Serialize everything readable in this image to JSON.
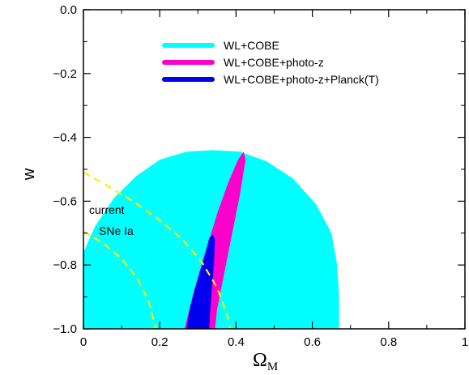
{
  "chart_data": {
    "type": "contour",
    "xlabel": "Ω",
    "xlabel_sub": "M",
    "ylabel": "w",
    "xlim": [
      0,
      1
    ],
    "ylim": [
      -1.0,
      0.0
    ],
    "xticks": [
      0,
      0.2,
      0.4,
      0.6,
      0.8,
      1
    ],
    "xtick_labels": [
      "0",
      "0.2",
      "0.4",
      "0.6",
      "0.8",
      "1"
    ],
    "yticks": [
      0.0,
      -0.2,
      -0.4,
      -0.6,
      -0.8,
      -1.0
    ],
    "ytick_labels": [
      "0.0",
      "−0.2",
      "−0.4",
      "−0.6",
      "−0.8",
      "−1.0"
    ],
    "legend_position": "top-right",
    "series": [
      {
        "name": "WL+COBE",
        "color": "#00ffff",
        "kind": "filled-region",
        "points": [
          [
            0.0,
            -0.76
          ],
          [
            0.03,
            -0.68
          ],
          [
            0.08,
            -0.59
          ],
          [
            0.14,
            -0.52
          ],
          [
            0.2,
            -0.47
          ],
          [
            0.27,
            -0.445
          ],
          [
            0.34,
            -0.44
          ],
          [
            0.41,
            -0.445
          ],
          [
            0.48,
            -0.475
          ],
          [
            0.55,
            -0.53
          ],
          [
            0.61,
            -0.61
          ],
          [
            0.65,
            -0.7
          ],
          [
            0.665,
            -0.8
          ],
          [
            0.67,
            -0.9
          ],
          [
            0.67,
            -1.0
          ],
          [
            0.0,
            -1.0
          ]
        ]
      },
      {
        "name": "WL+COBE+photo-z",
        "color": "#ff00cc",
        "kind": "filled-region",
        "points": [
          [
            0.265,
            -1.0
          ],
          [
            0.29,
            -0.88
          ],
          [
            0.32,
            -0.76
          ],
          [
            0.35,
            -0.64
          ],
          [
            0.38,
            -0.54
          ],
          [
            0.405,
            -0.47
          ],
          [
            0.42,
            -0.445
          ],
          [
            0.425,
            -0.47
          ],
          [
            0.41,
            -0.58
          ],
          [
            0.39,
            -0.7
          ],
          [
            0.37,
            -0.82
          ],
          [
            0.35,
            -0.94
          ],
          [
            0.345,
            -1.0
          ]
        ]
      },
      {
        "name": "WL+COBE+photo-z+Planck(T)",
        "color": "#0000ee",
        "kind": "filled-region",
        "points": [
          [
            0.27,
            -1.0
          ],
          [
            0.28,
            -0.93
          ],
          [
            0.3,
            -0.84
          ],
          [
            0.32,
            -0.76
          ],
          [
            0.33,
            -0.715
          ],
          [
            0.34,
            -0.705
          ],
          [
            0.345,
            -0.72
          ],
          [
            0.342,
            -0.8
          ],
          [
            0.336,
            -0.88
          ],
          [
            0.332,
            -0.95
          ],
          [
            0.33,
            -1.0
          ]
        ]
      }
    ],
    "lines": [
      {
        "name": "outer",
        "style": "dashed",
        "color": "#ffee00",
        "points": [
          [
            0.0,
            -0.51
          ],
          [
            0.06,
            -0.55
          ],
          [
            0.13,
            -0.6
          ],
          [
            0.2,
            -0.66
          ],
          [
            0.26,
            -0.72
          ],
          [
            0.31,
            -0.79
          ],
          [
            0.35,
            -0.87
          ],
          [
            0.375,
            -0.95
          ],
          [
            0.385,
            -1.0
          ]
        ]
      },
      {
        "name": "inner",
        "style": "dashed",
        "color": "#ffee00",
        "points": [
          [
            0.0,
            -0.695
          ],
          [
            0.05,
            -0.73
          ],
          [
            0.1,
            -0.78
          ],
          [
            0.14,
            -0.84
          ],
          [
            0.17,
            -0.91
          ],
          [
            0.19,
            -1.0
          ]
        ]
      }
    ],
    "annotations": [
      "current",
      "SNe Ia"
    ]
  }
}
